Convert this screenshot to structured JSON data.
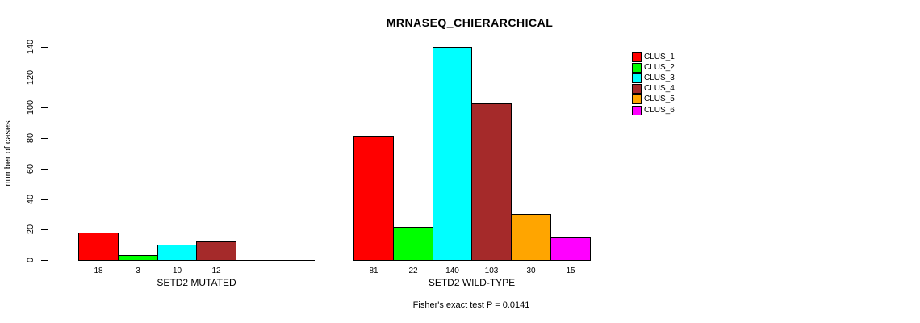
{
  "chart_data": {
    "type": "bar",
    "title": "MRNASEQ_CHIERARCHICAL",
    "ylabel": "number of cases",
    "ylim": [
      0,
      140
    ],
    "yticks": [
      0,
      20,
      40,
      60,
      80,
      100,
      120,
      140
    ],
    "grid": false,
    "legend_position": "top-right",
    "clusters": [
      {
        "name": "CLUS_1",
        "color": "#FF0000"
      },
      {
        "name": "CLUS_2",
        "color": "#00FF00"
      },
      {
        "name": "CLUS_3",
        "color": "#00FFFF"
      },
      {
        "name": "CLUS_4",
        "color": "#A52A2A"
      },
      {
        "name": "CLUS_5",
        "color": "#FFA500"
      },
      {
        "name": "CLUS_6",
        "color": "#FF00FF"
      }
    ],
    "groups": [
      {
        "label": "SETD2 MUTATED",
        "values": [
          18,
          3,
          10,
          12,
          0,
          0
        ]
      },
      {
        "label": "SETD2 WILD-TYPE",
        "values": [
          81,
          22,
          140,
          103,
          30,
          15
        ]
      }
    ],
    "footnote": "Fisher's exact test P = 0.0141"
  }
}
